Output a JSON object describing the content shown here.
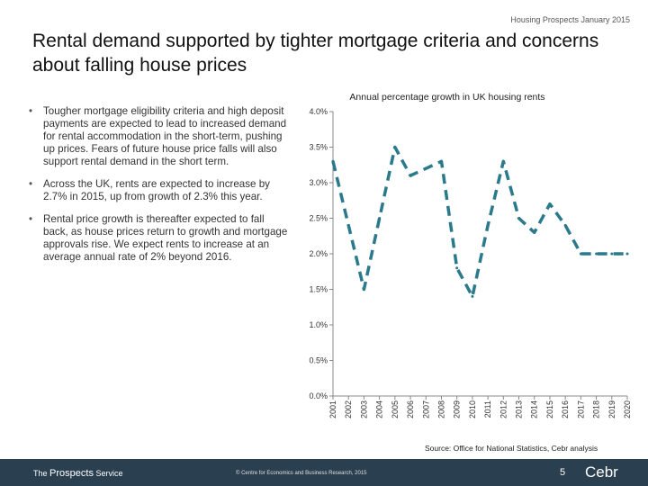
{
  "header": {
    "note": "Housing Prospects January 2015"
  },
  "title": "Rental demand supported by tighter mortgage criteria and concerns about falling house prices",
  "bullets": [
    {
      "bullet": "•",
      "text": "Tougher mortgage eligibility criteria and high deposit payments are expected to lead to increased demand for rental accommodation in the short-term, pushing up prices. Fears of future house price falls will also support rental demand in the short term."
    },
    {
      "bullet": "•",
      "text": "Across the UK, rents are expected to increase by 2.7% in 2015, up from growth of 2.3% this year."
    },
    {
      "bullet": "•",
      "text": "Rental price growth is thereafter expected to fall back, as house prices return to growth and mortgage approvals rise. We expect rents to increase at an average annual rate of 2% beyond 2016."
    }
  ],
  "chart_data": {
    "type": "line",
    "title": "Annual percentage growth in UK housing rents",
    "xlabel": "",
    "ylabel": "",
    "ylim": [
      0,
      4
    ],
    "yticks": [
      0,
      0.5,
      1,
      1.5,
      2,
      2.5,
      3,
      3.5,
      4
    ],
    "ytick_labels": [
      "0.0%",
      "0.5%",
      "1.0%",
      "1.5%",
      "2.0%",
      "2.5%",
      "3.0%",
      "3.5%",
      "4.0%"
    ],
    "categories": [
      "2001",
      "2002",
      "2003",
      "2004",
      "2005",
      "2006",
      "2007",
      "2008",
      "2009",
      "2010",
      "2011",
      "2012",
      "2013",
      "2014",
      "2015",
      "2016",
      "2017",
      "2018",
      "2019",
      "2020"
    ],
    "series": [
      {
        "name": "UK housing rents",
        "values": [
          3.3,
          2.4,
          1.5,
          2.5,
          3.5,
          3.1,
          3.2,
          3.3,
          1.8,
          1.4,
          2.4,
          3.3,
          2.5,
          2.3,
          2.7,
          2.4,
          2.0,
          2.0,
          2.0,
          2.0
        ],
        "color": "#2b7a8c",
        "style": "dashed"
      }
    ],
    "grid": false
  },
  "source": "Source: Office for National Statistics, Cebr analysis",
  "footer": {
    "brand_prefix": "The",
    "brand_main": "Prospects",
    "brand_suffix": "Service",
    "copyright": "© Centre for Economics and Business Research, 2015",
    "page_number": "5",
    "logo_text": "Cebr"
  }
}
